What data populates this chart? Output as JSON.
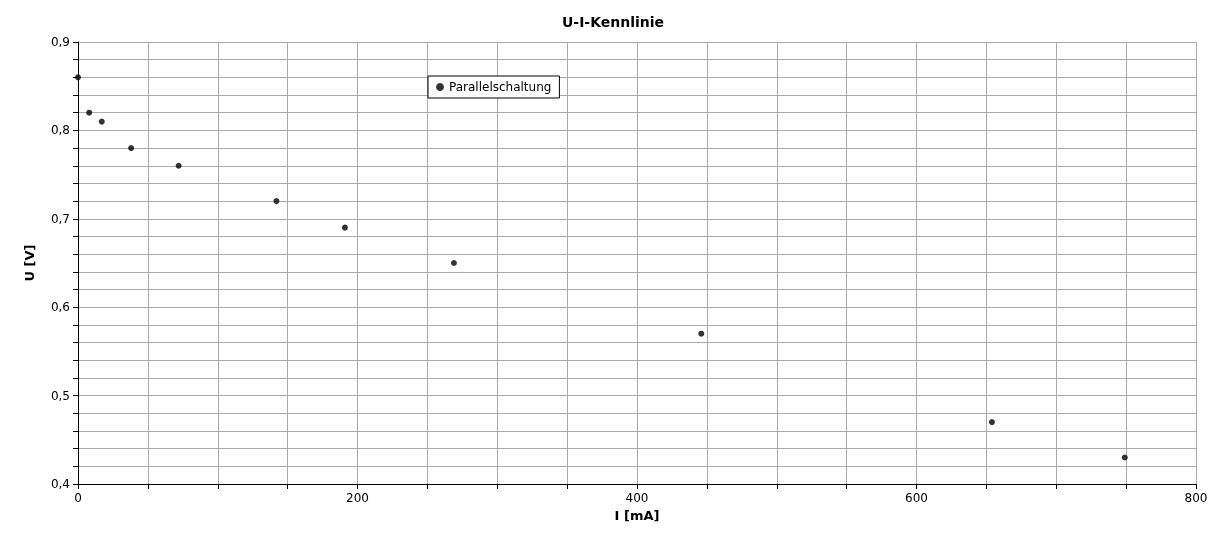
{
  "chart_data": {
    "type": "scatter",
    "title": "U-I-Kennlinie",
    "xlabel": "I [mA]",
    "ylabel": "U [V]",
    "x": [
      0,
      8,
      17,
      38,
      72,
      142,
      191,
      269,
      446,
      654,
      749
    ],
    "series": [
      {
        "name": "Parallelschaltung",
        "color": "#000000",
        "values": [
          0.86,
          0.82,
          0.81,
          0.78,
          0.76,
          0.72,
          0.69,
          0.65,
          0.57,
          0.47,
          0.43
        ]
      }
    ],
    "xlim": [
      0,
      800
    ],
    "xticks": [
      0,
      {
        "value": 50,
        "label": null
      },
      {
        "value": 100,
        "label": null
      },
      {
        "value": 150,
        "label": null
      },
      200,
      {
        "value": 250,
        "label": null
      },
      {
        "value": 300,
        "label": null
      },
      {
        "value": 350,
        "label": null
      },
      400,
      {
        "value": 450,
        "label": null
      },
      {
        "value": 500,
        "label": null
      },
      {
        "value": 550,
        "label": null
      },
      600,
      {
        "value": 650,
        "label": null
      },
      {
        "value": 700,
        "label": null
      },
      {
        "value": 750,
        "label": null
      },
      800
    ],
    "ylim": [
      0.4,
      0.9
    ],
    "yticks": [
      {
        "value": 0.4,
        "label": "0,4"
      },
      {
        "value": 0.42,
        "label": null
      },
      {
        "value": 0.44,
        "label": null
      },
      {
        "value": 0.46,
        "label": null
      },
      {
        "value": 0.48,
        "label": null
      },
      {
        "value": 0.5,
        "label": "0,5"
      },
      {
        "value": 0.52,
        "label": null
      },
      {
        "value": 0.54,
        "label": null
      },
      {
        "value": 0.56,
        "label": null
      },
      {
        "value": 0.58,
        "label": null
      },
      {
        "value": 0.6,
        "label": "0,6"
      },
      {
        "value": 0.62,
        "label": null
      },
      {
        "value": 0.64,
        "label": null
      },
      {
        "value": 0.66,
        "label": null
      },
      {
        "value": 0.68,
        "label": null
      },
      {
        "value": 0.7,
        "label": "0,7"
      },
      {
        "value": 0.72,
        "label": null
      },
      {
        "value": 0.74,
        "label": null
      },
      {
        "value": 0.76,
        "label": null
      },
      {
        "value": 0.78,
        "label": null
      },
      {
        "value": 0.8,
        "label": "0,8"
      },
      {
        "value": 0.82,
        "label": null
      },
      {
        "value": 0.84,
        "label": null
      },
      {
        "value": 0.86,
        "label": null
      },
      {
        "value": 0.88,
        "label": null
      },
      {
        "value": 0.9,
        "label": "0,9"
      }
    ],
    "grid": true,
    "legend": "top",
    "marker": "circle"
  }
}
